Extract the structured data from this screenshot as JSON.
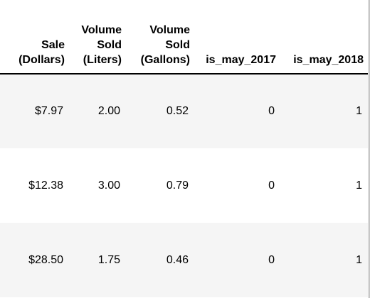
{
  "table": {
    "columns": [
      {
        "lines": [
          "Sale",
          "(Dollars)"
        ]
      },
      {
        "lines": [
          "Volume",
          "Sold",
          "(Liters)"
        ]
      },
      {
        "lines": [
          "Volume",
          "Sold",
          "(Gallons)"
        ]
      },
      {
        "lines": [
          "is_may_2017"
        ]
      },
      {
        "lines": [
          "is_may_2018"
        ]
      }
    ],
    "rows": [
      [
        "$7.97",
        "2.00",
        "0.52",
        "0",
        "1"
      ],
      [
        "$12.38",
        "3.00",
        "0.79",
        "0",
        "1"
      ],
      [
        "$28.50",
        "1.75",
        "0.46",
        "0",
        "1"
      ]
    ]
  }
}
